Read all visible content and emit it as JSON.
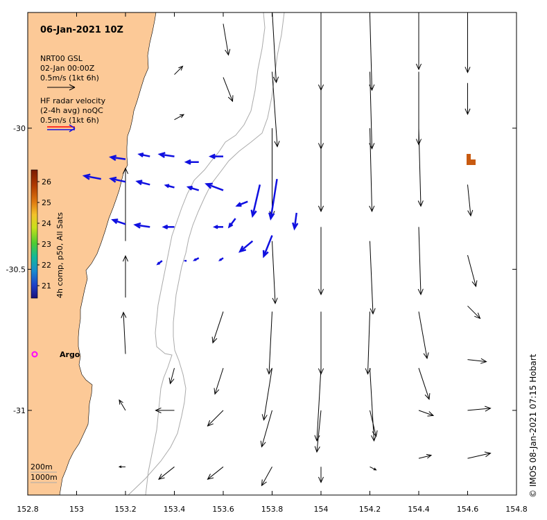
{
  "title": "06-Jan-2021 10Z",
  "legend": {
    "model_label": "NRT00 GSL",
    "model_time": "02-Jan 00:00Z",
    "model_scale": "0.5m/s (1kt 6h)",
    "radar_label_1": "HF radar velocity",
    "radar_label_2": "(2-4h avg) noQC",
    "radar_scale": "0.5m/s (1kt 6h)"
  },
  "colorbar": {
    "label": "4h comp, p50, All Sats",
    "ticks": [
      "26",
      "25",
      "24",
      "23",
      "22",
      "21"
    ],
    "colors": [
      "#7a1a00",
      "#b03a00",
      "#e07a10",
      "#f3c22a",
      "#c8e01a",
      "#4fcc30",
      "#12b89a",
      "#1a8acf",
      "#1f3fc8",
      "#1a107a"
    ]
  },
  "x_ticks": [
    "152.8",
    "153",
    "153.2",
    "153.4",
    "153.6",
    "153.8",
    "154",
    "154.2",
    "154.4",
    "154.6",
    "154.8"
  ],
  "y_ticks": [
    "-30",
    "-30.5",
    "-31"
  ],
  "argo_label": "Argo",
  "depth_labels": [
    "200m",
    "1000m"
  ],
  "credit": "© IMOS 08-Jan-2021 07:15 Hobart",
  "colors": {
    "land": "#fcc997",
    "radar": "#1010e0",
    "model": "#000000",
    "isobath": "#aaaaaa",
    "argo": "#ff00ff",
    "sst_patch": "#c85a10"
  },
  "model_arrows": [
    {
      "lon": 153.6,
      "lat": -29.63,
      "u": 0.05,
      "v": -0.3
    },
    {
      "lon": 153.8,
      "lat": -29.58,
      "u": 0.04,
      "v": -0.7
    },
    {
      "lon": 154.0,
      "lat": -29.6,
      "u": 0.0,
      "v": -0.72
    },
    {
      "lon": 154.2,
      "lat": -29.6,
      "u": 0.02,
      "v": -0.72
    },
    {
      "lon": 154.4,
      "lat": -29.6,
      "u": 0.0,
      "v": -0.52
    },
    {
      "lon": 154.6,
      "lat": -29.6,
      "u": 0.0,
      "v": -0.55
    },
    {
      "lon": 153.4,
      "lat": -29.81,
      "u": 0.08,
      "v": 0.08
    },
    {
      "lon": 153.6,
      "lat": -29.82,
      "u": 0.09,
      "v": -0.23
    },
    {
      "lon": 153.8,
      "lat": -29.8,
      "u": 0.05,
      "v": -0.72
    },
    {
      "lon": 154.0,
      "lat": -29.8,
      "u": 0.0,
      "v": -0.74
    },
    {
      "lon": 154.2,
      "lat": -29.8,
      "u": 0.02,
      "v": -0.74
    },
    {
      "lon": 154.4,
      "lat": -29.8,
      "u": 0.0,
      "v": -0.7
    },
    {
      "lon": 154.6,
      "lat": -29.84,
      "u": 0.0,
      "v": -0.3
    },
    {
      "lon": 153.4,
      "lat": -29.97,
      "u": 0.09,
      "v": 0.05
    },
    {
      "lon": 153.8,
      "lat": -30.0,
      "u": 0.0,
      "v": -0.85
    },
    {
      "lon": 154.0,
      "lat": -30.0,
      "u": 0.0,
      "v": -0.8
    },
    {
      "lon": 154.2,
      "lat": -30.0,
      "u": 0.02,
      "v": -0.8
    },
    {
      "lon": 154.4,
      "lat": -30.0,
      "u": 0.02,
      "v": -0.75
    },
    {
      "lon": 154.6,
      "lat": -30.2,
      "u": 0.03,
      "v": -0.3
    },
    {
      "lon": 153.2,
      "lat": -30.4,
      "u": 0.0,
      "v": 0.7
    },
    {
      "lon": 153.8,
      "lat": -30.4,
      "u": 0.03,
      "v": -0.6
    },
    {
      "lon": 154.0,
      "lat": -30.35,
      "u": 0.0,
      "v": -0.65
    },
    {
      "lon": 154.2,
      "lat": -30.4,
      "u": 0.03,
      "v": -0.7
    },
    {
      "lon": 154.4,
      "lat": -30.35,
      "u": 0.02,
      "v": -0.65
    },
    {
      "lon": 154.6,
      "lat": -30.45,
      "u": 0.08,
      "v": -0.3
    },
    {
      "lon": 153.2,
      "lat": -30.6,
      "u": 0.0,
      "v": 0.4
    },
    {
      "lon": 153.6,
      "lat": -30.65,
      "u": -0.1,
      "v": -0.3
    },
    {
      "lon": 153.8,
      "lat": -30.65,
      "u": -0.03,
      "v": -0.6
    },
    {
      "lon": 154.0,
      "lat": -30.65,
      "u": 0.0,
      "v": -0.6
    },
    {
      "lon": 154.2,
      "lat": -30.65,
      "u": -0.02,
      "v": -0.6
    },
    {
      "lon": 154.4,
      "lat": -30.65,
      "u": 0.08,
      "v": -0.45
    },
    {
      "lon": 154.6,
      "lat": -30.63,
      "u": 0.12,
      "v": -0.12
    },
    {
      "lon": 153.2,
      "lat": -30.8,
      "u": -0.02,
      "v": 0.4
    },
    {
      "lon": 153.4,
      "lat": -30.85,
      "u": -0.04,
      "v": -0.15
    },
    {
      "lon": 153.6,
      "lat": -30.85,
      "u": -0.08,
      "v": -0.25
    },
    {
      "lon": 153.8,
      "lat": -30.85,
      "u": -0.08,
      "v": -0.5
    },
    {
      "lon": 154.0,
      "lat": -30.85,
      "u": -0.04,
      "v": -0.7
    },
    {
      "lon": 154.2,
      "lat": -30.85,
      "u": 0.04,
      "v": -0.7
    },
    {
      "lon": 154.4,
      "lat": -30.85,
      "u": 0.1,
      "v": -0.3
    },
    {
      "lon": 154.6,
      "lat": -30.82,
      "u": 0.18,
      "v": -0.02
    },
    {
      "lon": 153.2,
      "lat": -31.0,
      "u": -0.06,
      "v": 0.1
    },
    {
      "lon": 153.4,
      "lat": -31.0,
      "u": -0.18,
      "v": 0.0
    },
    {
      "lon": 153.6,
      "lat": -31.0,
      "u": -0.15,
      "v": -0.15
    },
    {
      "lon": 153.8,
      "lat": -31.0,
      "u": -0.1,
      "v": -0.35
    },
    {
      "lon": 154.0,
      "lat": -31.0,
      "u": -0.04,
      "v": -0.4
    },
    {
      "lon": 154.2,
      "lat": -31.0,
      "u": 0.06,
      "v": -0.25
    },
    {
      "lon": 154.4,
      "lat": -31.0,
      "u": 0.14,
      "v": -0.05
    },
    {
      "lon": 154.6,
      "lat": -31.0,
      "u": 0.22,
      "v": 0.02
    },
    {
      "lon": 153.2,
      "lat": -31.2,
      "u": -0.06,
      "v": 0.0
    },
    {
      "lon": 153.4,
      "lat": -31.2,
      "u": -0.15,
      "v": -0.12
    },
    {
      "lon": 153.6,
      "lat": -31.2,
      "u": -0.15,
      "v": -0.12
    },
    {
      "lon": 153.8,
      "lat": -31.2,
      "u": -0.1,
      "v": -0.18
    },
    {
      "lon": 154.0,
      "lat": -31.2,
      "u": 0.0,
      "v": -0.15
    },
    {
      "lon": 154.2,
      "lat": -31.2,
      "u": 0.06,
      "v": -0.03
    },
    {
      "lon": 154.4,
      "lat": -31.17,
      "u": 0.12,
      "v": 0.03
    },
    {
      "lon": 154.6,
      "lat": -31.17,
      "u": 0.22,
      "v": 0.05
    }
  ],
  "radar_arrows": [
    {
      "lon": 153.6,
      "lat": -30.1,
      "u": -0.12,
      "v": 0.0
    },
    {
      "lon": 153.5,
      "lat": -30.12,
      "u": -0.12,
      "v": 0.0
    },
    {
      "lon": 153.4,
      "lat": -30.1,
      "u": -0.14,
      "v": 0.02
    },
    {
      "lon": 153.3,
      "lat": -30.1,
      "u": -0.1,
      "v": 0.02
    },
    {
      "lon": 153.2,
      "lat": -30.11,
      "u": -0.14,
      "v": 0.02
    },
    {
      "lon": 153.6,
      "lat": -30.22,
      "u": -0.16,
      "v": 0.06
    },
    {
      "lon": 153.5,
      "lat": -30.22,
      "u": -0.1,
      "v": 0.03
    },
    {
      "lon": 153.4,
      "lat": -30.21,
      "u": -0.08,
      "v": 0.02
    },
    {
      "lon": 153.3,
      "lat": -30.2,
      "u": -0.12,
      "v": 0.03
    },
    {
      "lon": 153.2,
      "lat": -30.19,
      "u": -0.14,
      "v": 0.03
    },
    {
      "lon": 153.1,
      "lat": -30.18,
      "u": -0.16,
      "v": 0.03
    },
    {
      "lon": 153.4,
      "lat": -30.35,
      "u": -0.1,
      "v": 0.0
    },
    {
      "lon": 153.3,
      "lat": -30.35,
      "u": -0.14,
      "v": 0.02
    },
    {
      "lon": 153.2,
      "lat": -30.34,
      "u": -0.12,
      "v": 0.04
    },
    {
      "lon": 153.6,
      "lat": -30.35,
      "u": -0.08,
      "v": 0.0
    },
    {
      "lon": 153.7,
      "lat": -30.26,
      "u": -0.1,
      "v": -0.04
    },
    {
      "lon": 153.75,
      "lat": -30.2,
      "u": -0.07,
      "v": -0.3
    },
    {
      "lon": 153.82,
      "lat": -30.18,
      "u": -0.06,
      "v": -0.38
    },
    {
      "lon": 153.72,
      "lat": -30.4,
      "u": -0.12,
      "v": -0.1
    },
    {
      "lon": 153.8,
      "lat": -30.38,
      "u": -0.08,
      "v": -0.2
    },
    {
      "lon": 153.9,
      "lat": -30.3,
      "u": -0.02,
      "v": -0.15
    },
    {
      "lon": 153.65,
      "lat": -30.32,
      "u": -0.06,
      "v": -0.08
    },
    {
      "lon": 153.35,
      "lat": -30.47,
      "u": -0.04,
      "v": -0.03
    },
    {
      "lon": 153.5,
      "lat": -30.46,
      "u": -0.04,
      "v": -0.02
    },
    {
      "lon": 153.6,
      "lat": -30.46,
      "u": -0.03,
      "v": -0.02
    },
    {
      "lon": 153.45,
      "lat": -30.47,
      "u": -0.01,
      "v": 0.0
    }
  ]
}
